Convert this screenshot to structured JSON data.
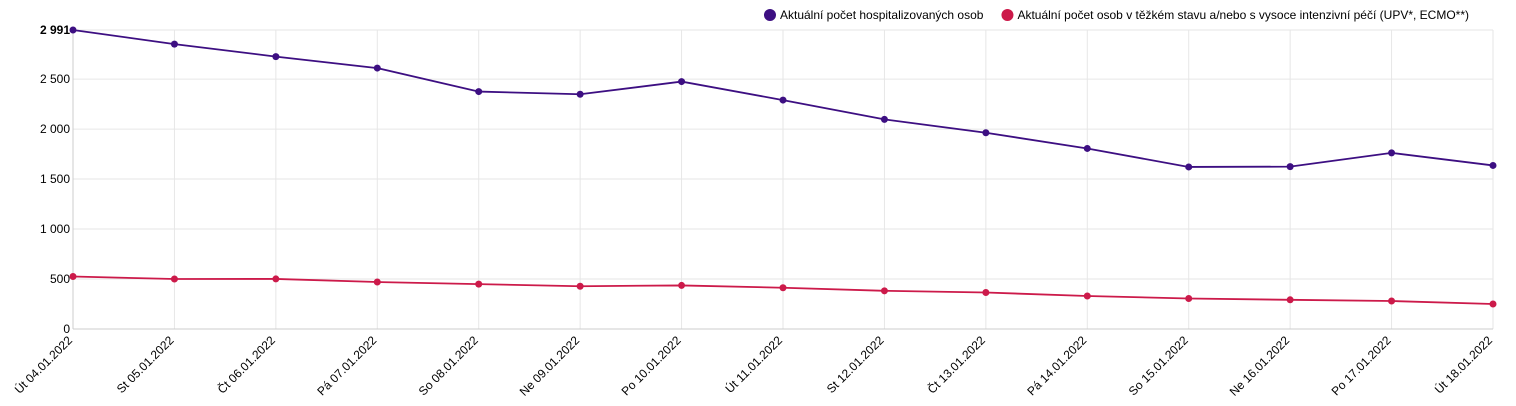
{
  "chart_data": {
    "type": "line",
    "categories": [
      "Út 04.01.2022",
      "St 05.01.2022",
      "Čt 06.01.2022",
      "Pá 07.01.2022",
      "So 08.01.2022",
      "Ne 09.01.2022",
      "Po 10.01.2022",
      "Út 11.01.2022",
      "St 12.01.2022",
      "Čt 13.01.2022",
      "Pá 14.01.2022",
      "So 15.01.2022",
      "Ne 16.01.2022",
      "Po 17.01.2022",
      "Út 18.01.2022"
    ],
    "series": [
      {
        "name": "Aktuální počet hospitalizovaných osob",
        "color": "#3d0f82",
        "values": [
          2991,
          2850,
          2725,
          2610,
          2375,
          2348,
          2475,
          2290,
          2097,
          1963,
          1806,
          1621,
          1624,
          1762,
          1636
        ]
      },
      {
        "name": "Aktuální počet osob v těžkém stavu a/nebo s vysoce intenzivní péčí (UPV*, ECMO**)",
        "color": "#cc1a4a",
        "values": [
          525,
          500,
          501,
          470,
          449,
          428,
          436,
          413,
          382,
          365,
          330,
          305,
          292,
          280,
          250
        ]
      }
    ],
    "yticks": [
      "0",
      "500",
      "1 000",
      "1 500",
      "2 000",
      "2 500"
    ],
    "ymax_label": "2 991",
    "ylim": [
      0,
      2991
    ],
    "grid": true,
    "legend": "top-right",
    "title": "",
    "xlabel": "",
    "ylabel": ""
  }
}
